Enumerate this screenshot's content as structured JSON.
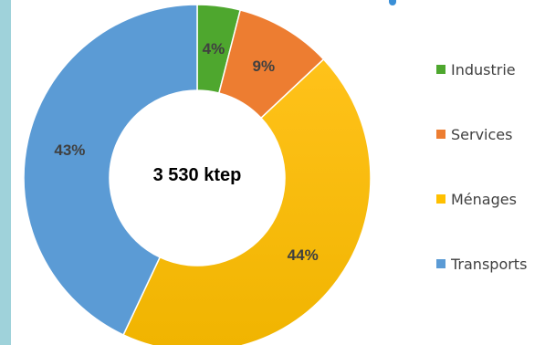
{
  "chart_data": {
    "type": "pie",
    "subtype": "donut",
    "center_label": "3 530 ktep",
    "categories": [
      "Industrie",
      "Services",
      "Ménages",
      "Transports"
    ],
    "values": [
      4,
      9,
      44,
      43
    ],
    "data_labels": [
      "4%",
      "9%",
      "44%",
      "43%"
    ],
    "colors": [
      "#4ea72e",
      "#ed7d31",
      "#ffc000",
      "#5b9bd5"
    ],
    "legend_position": "right"
  }
}
